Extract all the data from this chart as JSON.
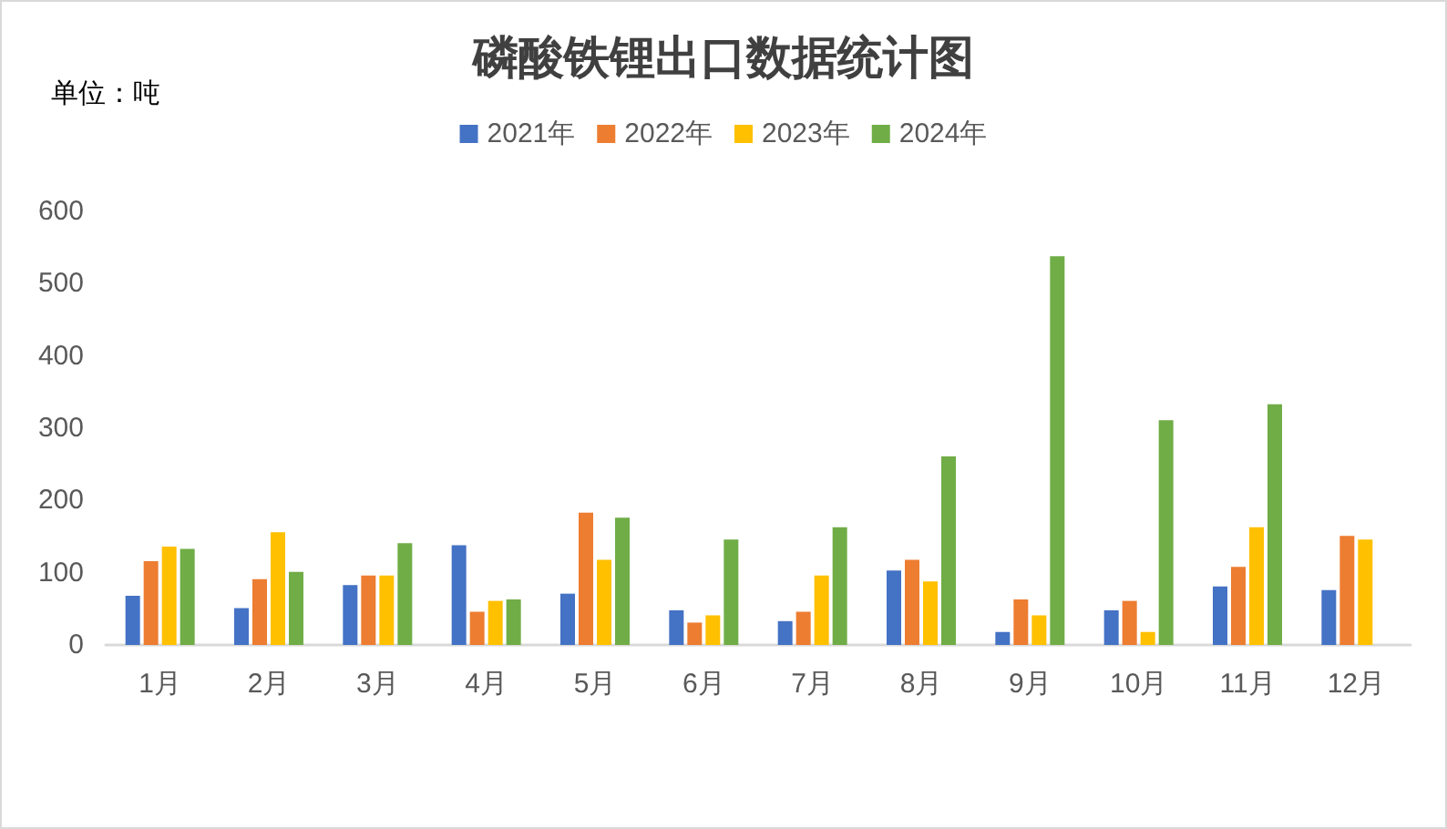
{
  "chart_data": {
    "type": "bar",
    "title": "磷酸铁锂出口数据统计图",
    "annotations": [
      "单位：吨"
    ],
    "categories": [
      "1月",
      "2月",
      "3月",
      "4月",
      "5月",
      "6月",
      "7月",
      "8月",
      "9月",
      "10月",
      "11月",
      "12月"
    ],
    "series": [
      {
        "name": "2021年",
        "color": "#4472c4",
        "values": [
          68,
          51,
          83,
          138,
          71,
          48,
          33,
          103,
          18,
          48,
          81,
          76
        ]
      },
      {
        "name": "2022年",
        "color": "#ed7d31",
        "values": [
          116,
          91,
          96,
          46,
          183,
          31,
          46,
          118,
          63,
          61,
          108,
          151
        ]
      },
      {
        "name": "2023年",
        "color": "#ffc000",
        "values": [
          136,
          156,
          96,
          61,
          118,
          41,
          96,
          88,
          41,
          18,
          163,
          146
        ]
      },
      {
        "name": "2024年",
        "color": "#70ad47",
        "values": [
          133,
          101,
          141,
          63,
          176,
          146,
          163,
          261,
          538,
          311,
          333,
          null
        ]
      }
    ],
    "ylim": [
      0,
      600
    ],
    "yticks": [
      0,
      100,
      200,
      300,
      400,
      500,
      600
    ],
    "legend": "top"
  }
}
